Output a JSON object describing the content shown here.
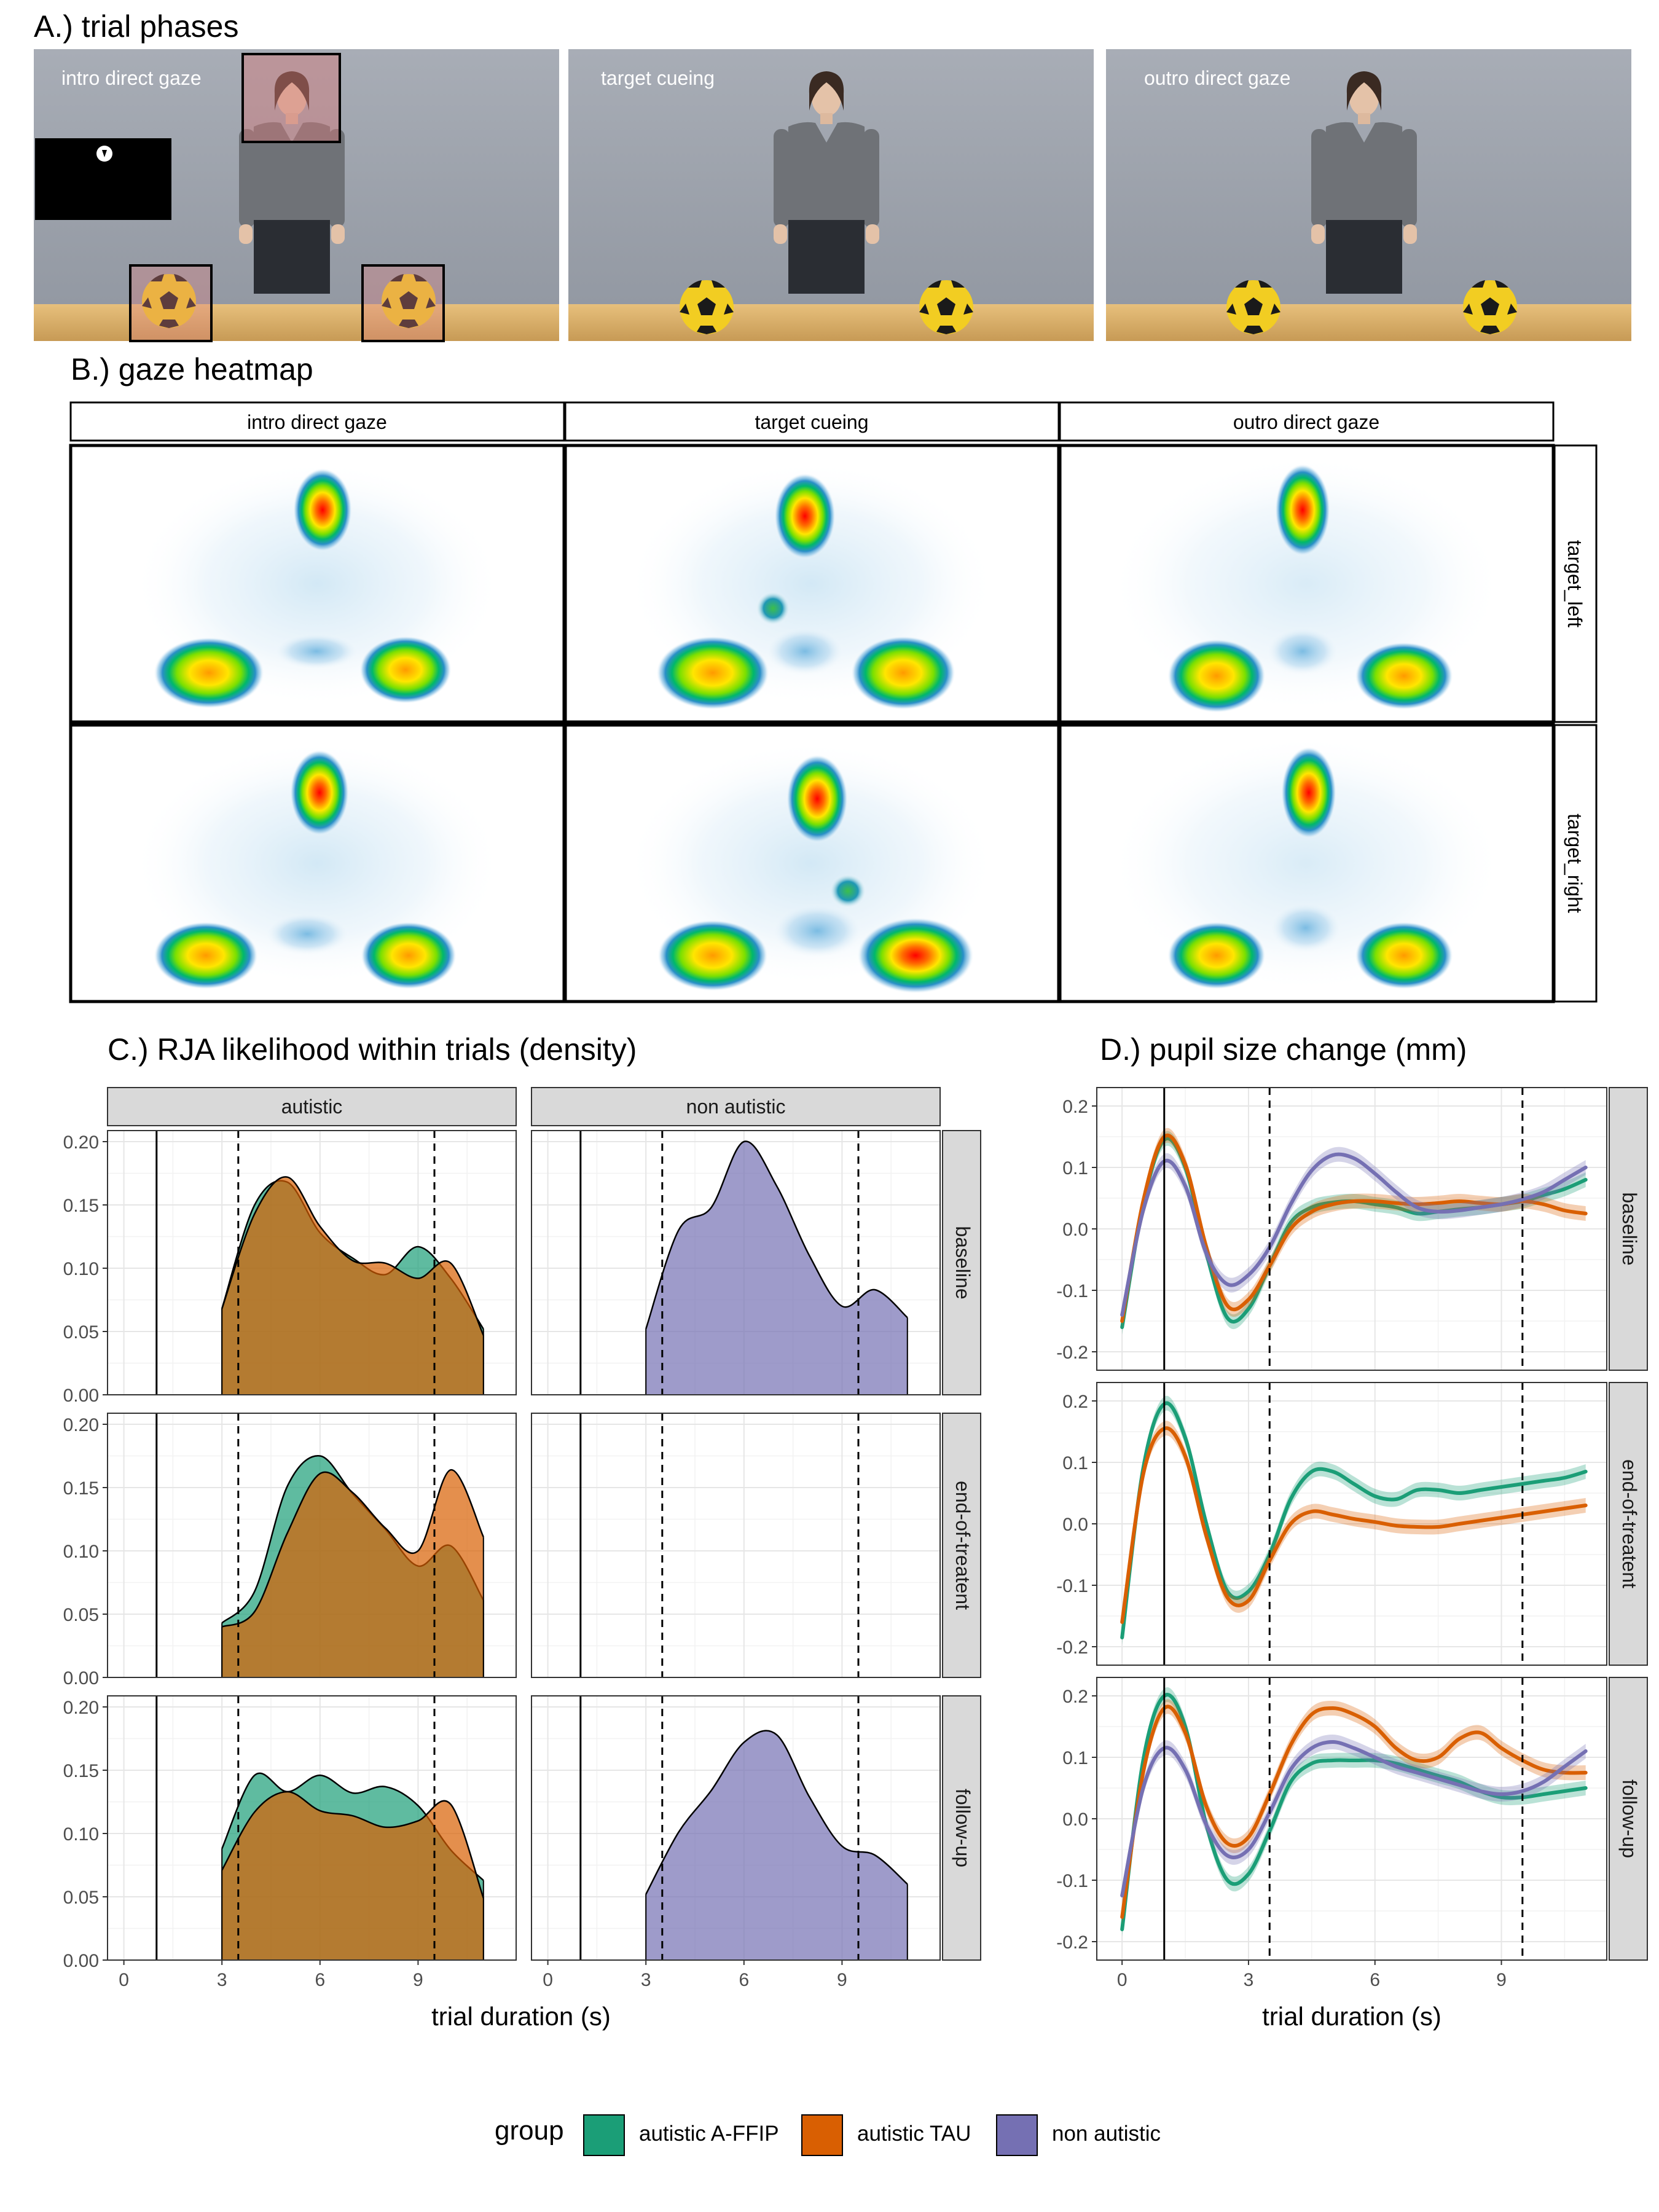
{
  "section_a": {
    "title": "A.) trial phases",
    "photos": [
      {
        "label": "intro direct gaze"
      },
      {
        "label": "target cueing"
      },
      {
        "label": "outro direct gaze"
      }
    ]
  },
  "section_b": {
    "title": "B.) gaze heatmap",
    "columns": [
      "intro direct gaze",
      "target cueing",
      "outro direct gaze"
    ],
    "rows": [
      "target_left",
      "target_right"
    ]
  },
  "section_c": {
    "title": "C.) RJA likelihood within trials (density)",
    "columns": [
      "autistic",
      "non autistic"
    ],
    "rows": [
      "baseline",
      "end-of-treatent",
      "follow-up"
    ],
    "xlabel": "trial duration (s)"
  },
  "section_d": {
    "title": "D.) pupil size change (mm)",
    "rows": [
      "baseline",
      "end-of-treatent",
      "follow-up"
    ],
    "xlabel": "trial duration (s)"
  },
  "legend": {
    "title": "group",
    "items": [
      {
        "label": "autistic A-FFIP",
        "color": "#1b9e77"
      },
      {
        "label": "autistic TAU",
        "color": "#d95f02"
      },
      {
        "label": "non autistic",
        "color": "#7570b3"
      }
    ]
  },
  "chart_data": [
    {
      "type": "area",
      "id": "C",
      "x": [
        3,
        4,
        5,
        6,
        7,
        8,
        9,
        10,
        11
      ],
      "xlim": [
        -0.5,
        12
      ],
      "ylim": [
        0,
        0.2
      ],
      "xticks": [
        0,
        3,
        6,
        9
      ],
      "yticks": [
        "0.00",
        "0.05",
        "0.10",
        "0.15",
        "0.20"
      ],
      "vlines_solid": [
        1
      ],
      "vlines_dashed": [
        3.5,
        9.5
      ],
      "panels": [
        {
          "row": "baseline",
          "col": "autistic",
          "series": [
            {
              "name": "autistic A-FFIP",
              "values": [
                0.068,
                0.15,
                0.168,
                0.128,
                0.108,
                0.095,
                0.117,
                0.092,
                0.052
              ]
            },
            {
              "name": "autistic TAU",
              "values": [
                0.068,
                0.143,
                0.172,
                0.133,
                0.106,
                0.104,
                0.092,
                0.104,
                0.047
              ]
            }
          ]
        },
        {
          "row": "baseline",
          "col": "non autistic",
          "series": [
            {
              "name": "non autistic",
              "values": [
                0.052,
                0.13,
                0.148,
                0.2,
                0.165,
                0.11,
                0.07,
                0.083,
                0.061
              ]
            }
          ]
        },
        {
          "row": "end-of-treatent",
          "col": "autistic",
          "series": [
            {
              "name": "autistic A-FFIP",
              "values": [
                0.043,
                0.068,
                0.151,
                0.175,
                0.145,
                0.117,
                0.088,
                0.104,
                0.061
              ]
            },
            {
              "name": "autistic TAU",
              "values": [
                0.04,
                0.052,
                0.114,
                0.161,
                0.146,
                0.118,
                0.1,
                0.164,
                0.111
              ]
            }
          ]
        },
        {
          "row": "end-of-treatent",
          "col": "non autistic",
          "series": []
        },
        {
          "row": "follow-up",
          "col": "autistic",
          "series": [
            {
              "name": "autistic A-FFIP",
              "values": [
                0.088,
                0.146,
                0.133,
                0.146,
                0.132,
                0.137,
                0.122,
                0.087,
                0.063
              ]
            },
            {
              "name": "autistic TAU",
              "values": [
                0.071,
                0.117,
                0.133,
                0.118,
                0.114,
                0.105,
                0.11,
                0.123,
                0.049
              ]
            }
          ]
        },
        {
          "row": "follow-up",
          "col": "non autistic",
          "series": [
            {
              "name": "non autistic",
              "values": [
                0.052,
                0.101,
                0.134,
                0.172,
                0.178,
                0.129,
                0.09,
                0.083,
                0.06
              ]
            }
          ]
        }
      ]
    },
    {
      "type": "line",
      "id": "D",
      "x": [
        0,
        0.5,
        1,
        1.5,
        2,
        2.5,
        3,
        3.5,
        4,
        4.5,
        5,
        5.5,
        6,
        6.5,
        7,
        7.5,
        8,
        8.5,
        9,
        9.5,
        10,
        10.5,
        11
      ],
      "xlim": [
        -0.6,
        11.5
      ],
      "ylim": [
        -0.23,
        0.23
      ],
      "xticks": [
        0,
        3,
        6,
        9
      ],
      "yticks": [
        -0.2,
        -0.1,
        0.0,
        0.1,
        0.2
      ],
      "vlines_solid": [
        1
      ],
      "vlines_dashed": [
        3.5,
        9.5
      ],
      "panels": [
        {
          "row": "baseline",
          "series": [
            {
              "name": "autistic A-FFIP",
              "values": [
                -0.16,
                0.04,
                0.145,
                0.1,
                -0.04,
                -0.145,
                -0.13,
                -0.06,
                0.01,
                0.035,
                0.043,
                0.045,
                0.04,
                0.035,
                0.025,
                0.028,
                0.032,
                0.035,
                0.04,
                0.045,
                0.055,
                0.065,
                0.08
              ]
            },
            {
              "name": "autistic TAU",
              "values": [
                -0.15,
                0.045,
                0.15,
                0.105,
                -0.03,
                -0.125,
                -0.115,
                -0.06,
                0.0,
                0.028,
                0.04,
                0.045,
                0.045,
                0.042,
                0.04,
                0.042,
                0.045,
                0.042,
                0.04,
                0.045,
                0.04,
                0.03,
                0.025
              ]
            },
            {
              "name": "non autistic",
              "values": [
                -0.14,
                0.03,
                0.11,
                0.07,
                -0.04,
                -0.09,
                -0.075,
                -0.03,
                0.04,
                0.095,
                0.12,
                0.115,
                0.09,
                0.06,
                0.035,
                0.028,
                0.03,
                0.035,
                0.04,
                0.048,
                0.06,
                0.08,
                0.1
              ]
            }
          ]
        },
        {
          "row": "end-of-treatent",
          "series": [
            {
              "name": "autistic A-FFIP",
              "values": [
                -0.185,
                0.09,
                0.195,
                0.14,
                0.0,
                -0.11,
                -0.11,
                -0.05,
                0.04,
                0.085,
                0.085,
                0.065,
                0.045,
                0.04,
                0.055,
                0.055,
                0.05,
                0.055,
                0.06,
                0.065,
                0.07,
                0.075,
                0.085
              ]
            },
            {
              "name": "autistic TAU",
              "values": [
                -0.16,
                0.08,
                0.155,
                0.11,
                -0.02,
                -0.12,
                -0.125,
                -0.06,
                0.0,
                0.02,
                0.015,
                0.008,
                0.003,
                -0.003,
                -0.005,
                -0.005,
                0.0,
                0.005,
                0.01,
                0.015,
                0.02,
                0.025,
                0.03
              ]
            }
          ]
        },
        {
          "row": "follow-up",
          "series": [
            {
              "name": "autistic A-FFIP",
              "values": [
                -0.18,
                0.095,
                0.2,
                0.15,
                -0.01,
                -0.1,
                -0.09,
                -0.02,
                0.06,
                0.09,
                0.095,
                0.095,
                0.095,
                0.09,
                0.08,
                0.07,
                0.06,
                0.045,
                0.035,
                0.035,
                0.04,
                0.045,
                0.05
              ]
            },
            {
              "name": "autistic TAU",
              "values": [
                -0.16,
                0.075,
                0.18,
                0.14,
                0.02,
                -0.04,
                -0.03,
                0.04,
                0.12,
                0.17,
                0.18,
                0.17,
                0.15,
                0.115,
                0.095,
                0.1,
                0.13,
                0.14,
                0.115,
                0.095,
                0.08,
                0.075,
                0.075
              ]
            },
            {
              "name": "non autistic",
              "values": [
                -0.125,
                0.05,
                0.115,
                0.08,
                -0.01,
                -0.06,
                -0.05,
                0.01,
                0.08,
                0.115,
                0.125,
                0.115,
                0.1,
                0.085,
                0.075,
                0.065,
                0.055,
                0.045,
                0.04,
                0.045,
                0.06,
                0.085,
                0.11
              ]
            }
          ]
        }
      ]
    }
  ]
}
